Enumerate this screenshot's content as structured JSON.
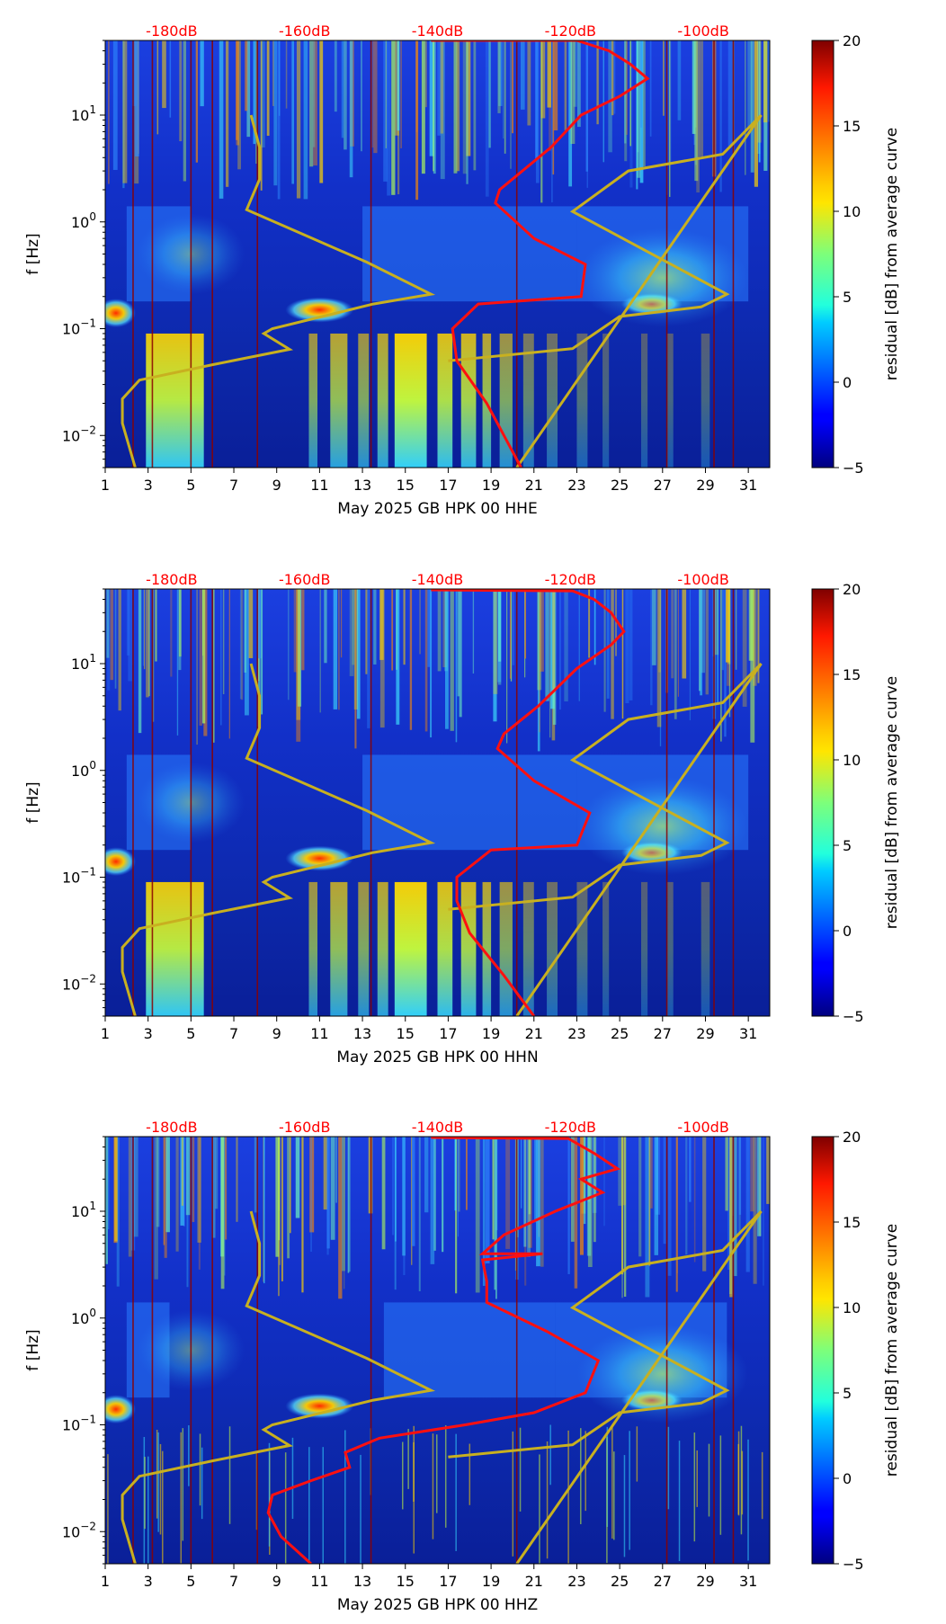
{
  "chart_data": [
    {
      "type": "heatmap",
      "title": "",
      "xlabel": "May 2025 GB HPK 00 HHE",
      "ylabel": "f [Hz]",
      "x_ticks": [
        "1",
        "3",
        "5",
        "7",
        "9",
        "11",
        "13",
        "15",
        "17",
        "19",
        "21",
        "23",
        "25",
        "27",
        "29",
        "31"
      ],
      "y_ticks": [
        {
          "value": 0.01,
          "base": "10",
          "exp": "−2"
        },
        {
          "value": 0.1,
          "base": "10",
          "exp": "−1"
        },
        {
          "value": 1,
          "base": "10",
          "exp": "0"
        },
        {
          "value": 10,
          "base": "10",
          "exp": "1"
        }
      ],
      "xlim": [
        1,
        32
      ],
      "ylim": [
        0.005,
        50
      ],
      "top_axis_labels": [
        "-180dB",
        "-160dB",
        "-140dB",
        "-120dB",
        "-100dB"
      ],
      "colorbar": {
        "label": "residual [dB] from average curve",
        "min": -5,
        "max": 20,
        "ticks": [
          "20",
          "15",
          "10",
          "5",
          "0",
          "−5"
        ]
      },
      "yellow_curve": [
        [
          2.4,
          0.005
        ],
        [
          1.8,
          0.013
        ],
        [
          1.8,
          0.022
        ],
        [
          2.6,
          0.033
        ],
        [
          6,
          0.046
        ],
        [
          9.6,
          0.064
        ],
        [
          8.4,
          0.09
        ],
        [
          8.8,
          0.1
        ],
        [
          13.5,
          0.17
        ],
        [
          16.2,
          0.21
        ],
        [
          13.2,
          0.42
        ],
        [
          7.6,
          1.3
        ],
        [
          8.2,
          2.5
        ],
        [
          8.2,
          5
        ],
        [
          7.8,
          10
        ],
        [
          17,
          0.05
        ],
        [
          22.8,
          0.065
        ],
        [
          25,
          0.13
        ],
        [
          28.8,
          0.16
        ],
        [
          30,
          0.21
        ],
        [
          22.8,
          1.25
        ],
        [
          25.4,
          3
        ],
        [
          29.8,
          4.3
        ],
        [
          31.6,
          10
        ],
        [
          20.2,
          0.005
        ]
      ],
      "red_curve": [
        [
          20.4,
          0.005
        ],
        [
          18.8,
          0.02
        ],
        [
          17.4,
          0.05
        ],
        [
          17.2,
          0.1
        ],
        [
          18.4,
          0.17
        ],
        [
          23.2,
          0.2
        ],
        [
          23.4,
          0.4
        ],
        [
          21,
          0.7
        ],
        [
          19.2,
          1.5
        ],
        [
          19.4,
          2
        ],
        [
          21.8,
          5
        ],
        [
          23.2,
          10
        ],
        [
          25,
          15
        ],
        [
          26.3,
          22
        ],
        [
          25.5,
          30
        ],
        [
          24.5,
          40
        ],
        [
          23,
          50
        ],
        [
          16.2,
          50
        ]
      ]
    },
    {
      "type": "heatmap",
      "title": "",
      "xlabel": "May 2025 GB HPK 00 HHN",
      "ylabel": "f [Hz]",
      "x_ticks": [
        "1",
        "3",
        "5",
        "7",
        "9",
        "11",
        "13",
        "15",
        "17",
        "19",
        "21",
        "23",
        "25",
        "27",
        "29",
        "31"
      ],
      "y_ticks": [
        {
          "value": 0.01,
          "base": "10",
          "exp": "−2"
        },
        {
          "value": 0.1,
          "base": "10",
          "exp": "−1"
        },
        {
          "value": 1,
          "base": "10",
          "exp": "0"
        },
        {
          "value": 10,
          "base": "10",
          "exp": "1"
        }
      ],
      "xlim": [
        1,
        32
      ],
      "ylim": [
        0.005,
        50
      ],
      "top_axis_labels": [
        "-180dB",
        "-160dB",
        "-140dB",
        "-120dB",
        "-100dB"
      ],
      "colorbar": {
        "label": "residual [dB] from average curve",
        "min": -5,
        "max": 20,
        "ticks": [
          "20",
          "15",
          "10",
          "5",
          "0",
          "−5"
        ]
      },
      "yellow_curve": [
        [
          2.4,
          0.005
        ],
        [
          1.8,
          0.013
        ],
        [
          1.8,
          0.022
        ],
        [
          2.6,
          0.033
        ],
        [
          6,
          0.046
        ],
        [
          9.6,
          0.064
        ],
        [
          8.4,
          0.09
        ],
        [
          8.8,
          0.1
        ],
        [
          13.5,
          0.17
        ],
        [
          16.2,
          0.21
        ],
        [
          13.2,
          0.42
        ],
        [
          7.6,
          1.3
        ],
        [
          8.2,
          2.5
        ],
        [
          8.2,
          5
        ],
        [
          7.8,
          10
        ],
        [
          17,
          0.05
        ],
        [
          22.8,
          0.065
        ],
        [
          25,
          0.13
        ],
        [
          28.8,
          0.16
        ],
        [
          30,
          0.21
        ],
        [
          22.8,
          1.25
        ],
        [
          25.4,
          3
        ],
        [
          29.8,
          4.3
        ],
        [
          31.6,
          10
        ],
        [
          20.2,
          0.005
        ]
      ],
      "red_curve": [
        [
          21,
          0.005
        ],
        [
          19.6,
          0.012
        ],
        [
          18,
          0.03
        ],
        [
          17.4,
          0.06
        ],
        [
          17.4,
          0.1
        ],
        [
          19,
          0.18
        ],
        [
          23,
          0.2
        ],
        [
          23.6,
          0.4
        ],
        [
          21,
          0.8
        ],
        [
          19.3,
          1.6
        ],
        [
          19.6,
          2.2
        ],
        [
          21.2,
          4
        ],
        [
          23,
          9
        ],
        [
          24.6,
          15
        ],
        [
          25.2,
          20
        ],
        [
          24.6,
          30
        ],
        [
          23.8,
          40
        ],
        [
          22.8,
          48
        ],
        [
          16.2,
          49
        ]
      ]
    },
    {
      "type": "heatmap",
      "title": "",
      "xlabel": "May 2025 GB HPK 00 HHZ",
      "ylabel": "f [Hz]",
      "x_ticks": [
        "1",
        "3",
        "5",
        "7",
        "9",
        "11",
        "13",
        "15",
        "17",
        "19",
        "21",
        "23",
        "25",
        "27",
        "29",
        "31"
      ],
      "y_ticks": [
        {
          "value": 0.01,
          "base": "10",
          "exp": "−2"
        },
        {
          "value": 0.1,
          "base": "10",
          "exp": "−1"
        },
        {
          "value": 1,
          "base": "10",
          "exp": "0"
        },
        {
          "value": 10,
          "base": "10",
          "exp": "1"
        }
      ],
      "xlim": [
        1,
        32
      ],
      "ylim": [
        0.005,
        50
      ],
      "top_axis_labels": [
        "-180dB",
        "-160dB",
        "-140dB",
        "-120dB",
        "-100dB"
      ],
      "colorbar": {
        "label": "residual [dB] from average curve",
        "min": -5,
        "max": 20,
        "ticks": [
          "20",
          "15",
          "10",
          "5",
          "0",
          "−5"
        ]
      },
      "yellow_curve": [
        [
          2.4,
          0.005
        ],
        [
          1.8,
          0.013
        ],
        [
          1.8,
          0.022
        ],
        [
          2.6,
          0.033
        ],
        [
          6,
          0.046
        ],
        [
          9.6,
          0.064
        ],
        [
          8.4,
          0.09
        ],
        [
          8.8,
          0.1
        ],
        [
          13.5,
          0.17
        ],
        [
          16.2,
          0.21
        ],
        [
          13.2,
          0.42
        ],
        [
          7.6,
          1.3
        ],
        [
          8.2,
          2.5
        ],
        [
          8.2,
          5
        ],
        [
          7.8,
          10
        ],
        [
          17,
          0.05
        ],
        [
          22.8,
          0.065
        ],
        [
          25,
          0.13
        ],
        [
          28.8,
          0.16
        ],
        [
          30,
          0.21
        ],
        [
          22.8,
          1.25
        ],
        [
          25.4,
          3
        ],
        [
          29.8,
          4.3
        ],
        [
          31.6,
          10
        ],
        [
          20.2,
          0.005
        ]
      ],
      "red_curve": [
        [
          10.6,
          0.005
        ],
        [
          9.2,
          0.009
        ],
        [
          8.6,
          0.015
        ],
        [
          8.8,
          0.022
        ],
        [
          10.6,
          0.03
        ],
        [
          12.4,
          0.04
        ],
        [
          12.2,
          0.055
        ],
        [
          13.8,
          0.075
        ],
        [
          17.8,
          0.1
        ],
        [
          21,
          0.13
        ],
        [
          23.4,
          0.2
        ],
        [
          24,
          0.4
        ],
        [
          21.6,
          0.75
        ],
        [
          18.8,
          1.4
        ],
        [
          18.8,
          2.2
        ],
        [
          18.6,
          3.5
        ],
        [
          21.4,
          4
        ],
        [
          18.6,
          4
        ],
        [
          19.6,
          6
        ],
        [
          22,
          10
        ],
        [
          24.2,
          15
        ],
        [
          23.2,
          20
        ],
        [
          24.9,
          25
        ],
        [
          23.8,
          35
        ],
        [
          22.6,
          48
        ],
        [
          16.2,
          49
        ]
      ]
    }
  ]
}
